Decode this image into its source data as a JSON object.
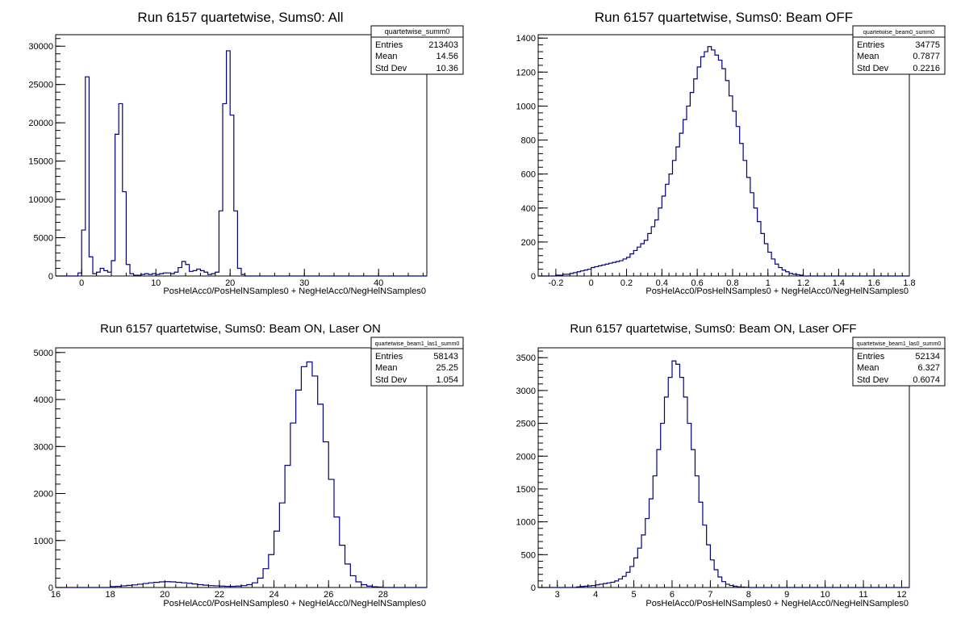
{
  "colors": {
    "histogram_line": "#000080",
    "frame": "#000000",
    "background": "#ffffff"
  },
  "chart_data": [
    {
      "type": "histogram",
      "title": "Run 6157 quartetwise, Sums0: All",
      "xlabel": "PosHelAcc0/PosHelNSamples0 + NegHelAcc0/NegHelNSamples0",
      "ylabel": "",
      "xlim": [
        -3.5,
        46.5
      ],
      "ylim": [
        0,
        31500
      ],
      "xticks": [
        "0",
        "10",
        "20",
        "30",
        "40"
      ],
      "yticks": [
        "0",
        "5000",
        "10000",
        "15000",
        "20000",
        "25000",
        "30000"
      ],
      "stats": {
        "name": "quartetwise_summ0",
        "rows": [
          {
            "label": "Entries",
            "value": "213403"
          },
          {
            "label": "Mean",
            "value": "14.56"
          },
          {
            "label": "Std Dev",
            "value": "10.36"
          }
        ]
      },
      "bin_edges": [
        -0.5,
        0,
        0.5,
        1,
        1.5,
        2,
        2.5,
        3,
        3.5,
        4,
        4.5,
        5,
        5.5,
        6,
        6.5,
        7,
        7.5,
        8,
        8.5,
        9,
        9.5,
        10,
        10.5,
        11,
        11.5,
        12,
        12.5,
        13,
        13.5,
        14,
        14.5,
        15,
        15.5,
        16,
        16.5,
        17,
        17.5,
        18,
        18.5,
        19,
        19.5,
        20,
        20.5,
        21,
        21.5,
        22,
        22.5,
        23,
        23.5,
        24,
        24.5,
        25,
        25.5,
        26,
        26.5,
        27,
        27.5,
        28
      ],
      "counts": [
        400,
        6000,
        26000,
        2500,
        300,
        500,
        1000,
        700,
        500,
        2000,
        18500,
        22500,
        11000,
        1500,
        300,
        100,
        100,
        200,
        300,
        200,
        300,
        200,
        300,
        400,
        400,
        300,
        500,
        1100,
        1900,
        1500,
        600,
        700,
        900,
        700,
        500,
        200,
        300,
        500,
        8500,
        22500,
        29400,
        21000,
        8500,
        1000,
        200,
        0,
        0,
        0,
        0,
        0,
        0,
        0,
        0,
        0,
        0,
        0,
        0
      ]
    },
    {
      "type": "histogram",
      "title": "Run 6157 quartetwise, Sums0: Beam OFF",
      "xlabel": "PosHelAcc0/PosHelNSamples0 + NegHelAcc0/NegHelNSamples0",
      "ylabel": "",
      "xlim": [
        -0.3,
        1.8
      ],
      "ylim": [
        0,
        1420
      ],
      "xticks": [
        "-0.2",
        "0",
        "0.2",
        "0.4",
        "0.6",
        "0.8",
        "1",
        "1.2",
        "1.4",
        "1.6",
        "1.8"
      ],
      "yticks": [
        "0",
        "200",
        "400",
        "600",
        "800",
        "1000",
        "1200",
        "1400"
      ],
      "stats": {
        "name": "quartetwise_beam0_summ0",
        "rows": [
          {
            "label": "Entries",
            "value": "34775"
          },
          {
            "label": "Mean",
            "value": "0.7877"
          },
          {
            "label": "Std Dev",
            "value": "0.2216"
          }
        ]
      },
      "x_start": -0.2,
      "bin_width": 0.02,
      "counts": [
        5,
        5,
        10,
        10,
        15,
        20,
        25,
        30,
        35,
        40,
        50,
        55,
        60,
        65,
        70,
        75,
        80,
        85,
        90,
        100,
        110,
        130,
        150,
        170,
        190,
        210,
        250,
        290,
        330,
        400,
        470,
        540,
        600,
        680,
        760,
        840,
        920,
        1000,
        1080,
        1160,
        1230,
        1290,
        1320,
        1350,
        1330,
        1300,
        1270,
        1220,
        1150,
        1060,
        970,
        880,
        780,
        680,
        580,
        490,
        400,
        320,
        250,
        190,
        140,
        100,
        70,
        50,
        35,
        25,
        15,
        10,
        8,
        5
      ]
    },
    {
      "type": "histogram",
      "title": "Run 6157 quartetwise, Sums0: Beam ON, Laser ON",
      "xlabel": "PosHelAcc0/PosHelNSamples0 + NegHelAcc0/NegHelNSamples0",
      "ylabel": "",
      "xlim": [
        16,
        29.6
      ],
      "ylim": [
        0,
        5100
      ],
      "xticks": [
        "16",
        "18",
        "20",
        "22",
        "24",
        "26",
        "28"
      ],
      "yticks": [
        "0",
        "1000",
        "2000",
        "3000",
        "4000",
        "5000"
      ],
      "stats": {
        "name": "quartetwise_beam1_las1_summ0",
        "rows": [
          {
            "label": "Entries",
            "value": "58143"
          },
          {
            "label": "Mean",
            "value": "25.25"
          },
          {
            "label": "Std Dev",
            "value": "1.054"
          }
        ]
      },
      "x_start": 18,
      "bin_width": 0.2,
      "counts": [
        20,
        25,
        35,
        45,
        55,
        70,
        85,
        100,
        110,
        120,
        125,
        120,
        110,
        100,
        90,
        75,
        60,
        50,
        40,
        35,
        30,
        25,
        25,
        30,
        40,
        60,
        100,
        200,
        400,
        700,
        1200,
        1800,
        2600,
        3500,
        4200,
        4700,
        4800,
        4500,
        3900,
        3100,
        2300,
        1500,
        900,
        500,
        250,
        120,
        60,
        30,
        15,
        8
      ]
    },
    {
      "type": "histogram",
      "title": "Run 6157 quartetwise, Sums0: Beam ON, Laser OFF",
      "xlabel": "PosHelAcc0/PosHelNSamples0 + NegHelAcc0/NegHelNSamples0",
      "ylabel": "",
      "xlim": [
        2.5,
        12.2
      ],
      "ylim": [
        0,
        3650
      ],
      "xticks": [
        "3",
        "4",
        "5",
        "6",
        "7",
        "8",
        "9",
        "10",
        "11",
        "12"
      ],
      "yticks": [
        "0",
        "500",
        "1000",
        "1500",
        "2000",
        "2500",
        "3000",
        "3500"
      ],
      "stats": {
        "name": "quartetwise_beam1_las0_summ0",
        "rows": [
          {
            "label": "Entries",
            "value": "52134"
          },
          {
            "label": "Mean",
            "value": "6.327"
          },
          {
            "label": "Std Dev",
            "value": "0.6074"
          }
        ]
      },
      "x_start": 3.5,
      "bin_width": 0.1,
      "counts": [
        10,
        15,
        20,
        25,
        30,
        40,
        50,
        60,
        70,
        80,
        100,
        130,
        170,
        230,
        320,
        450,
        600,
        800,
        1050,
        1350,
        1700,
        2100,
        2500,
        2900,
        3200,
        3450,
        3400,
        3200,
        2900,
        2500,
        2100,
        1700,
        1300,
        950,
        650,
        420,
        270,
        160,
        90,
        50,
        30,
        18,
        10,
        6,
        4
      ]
    }
  ]
}
